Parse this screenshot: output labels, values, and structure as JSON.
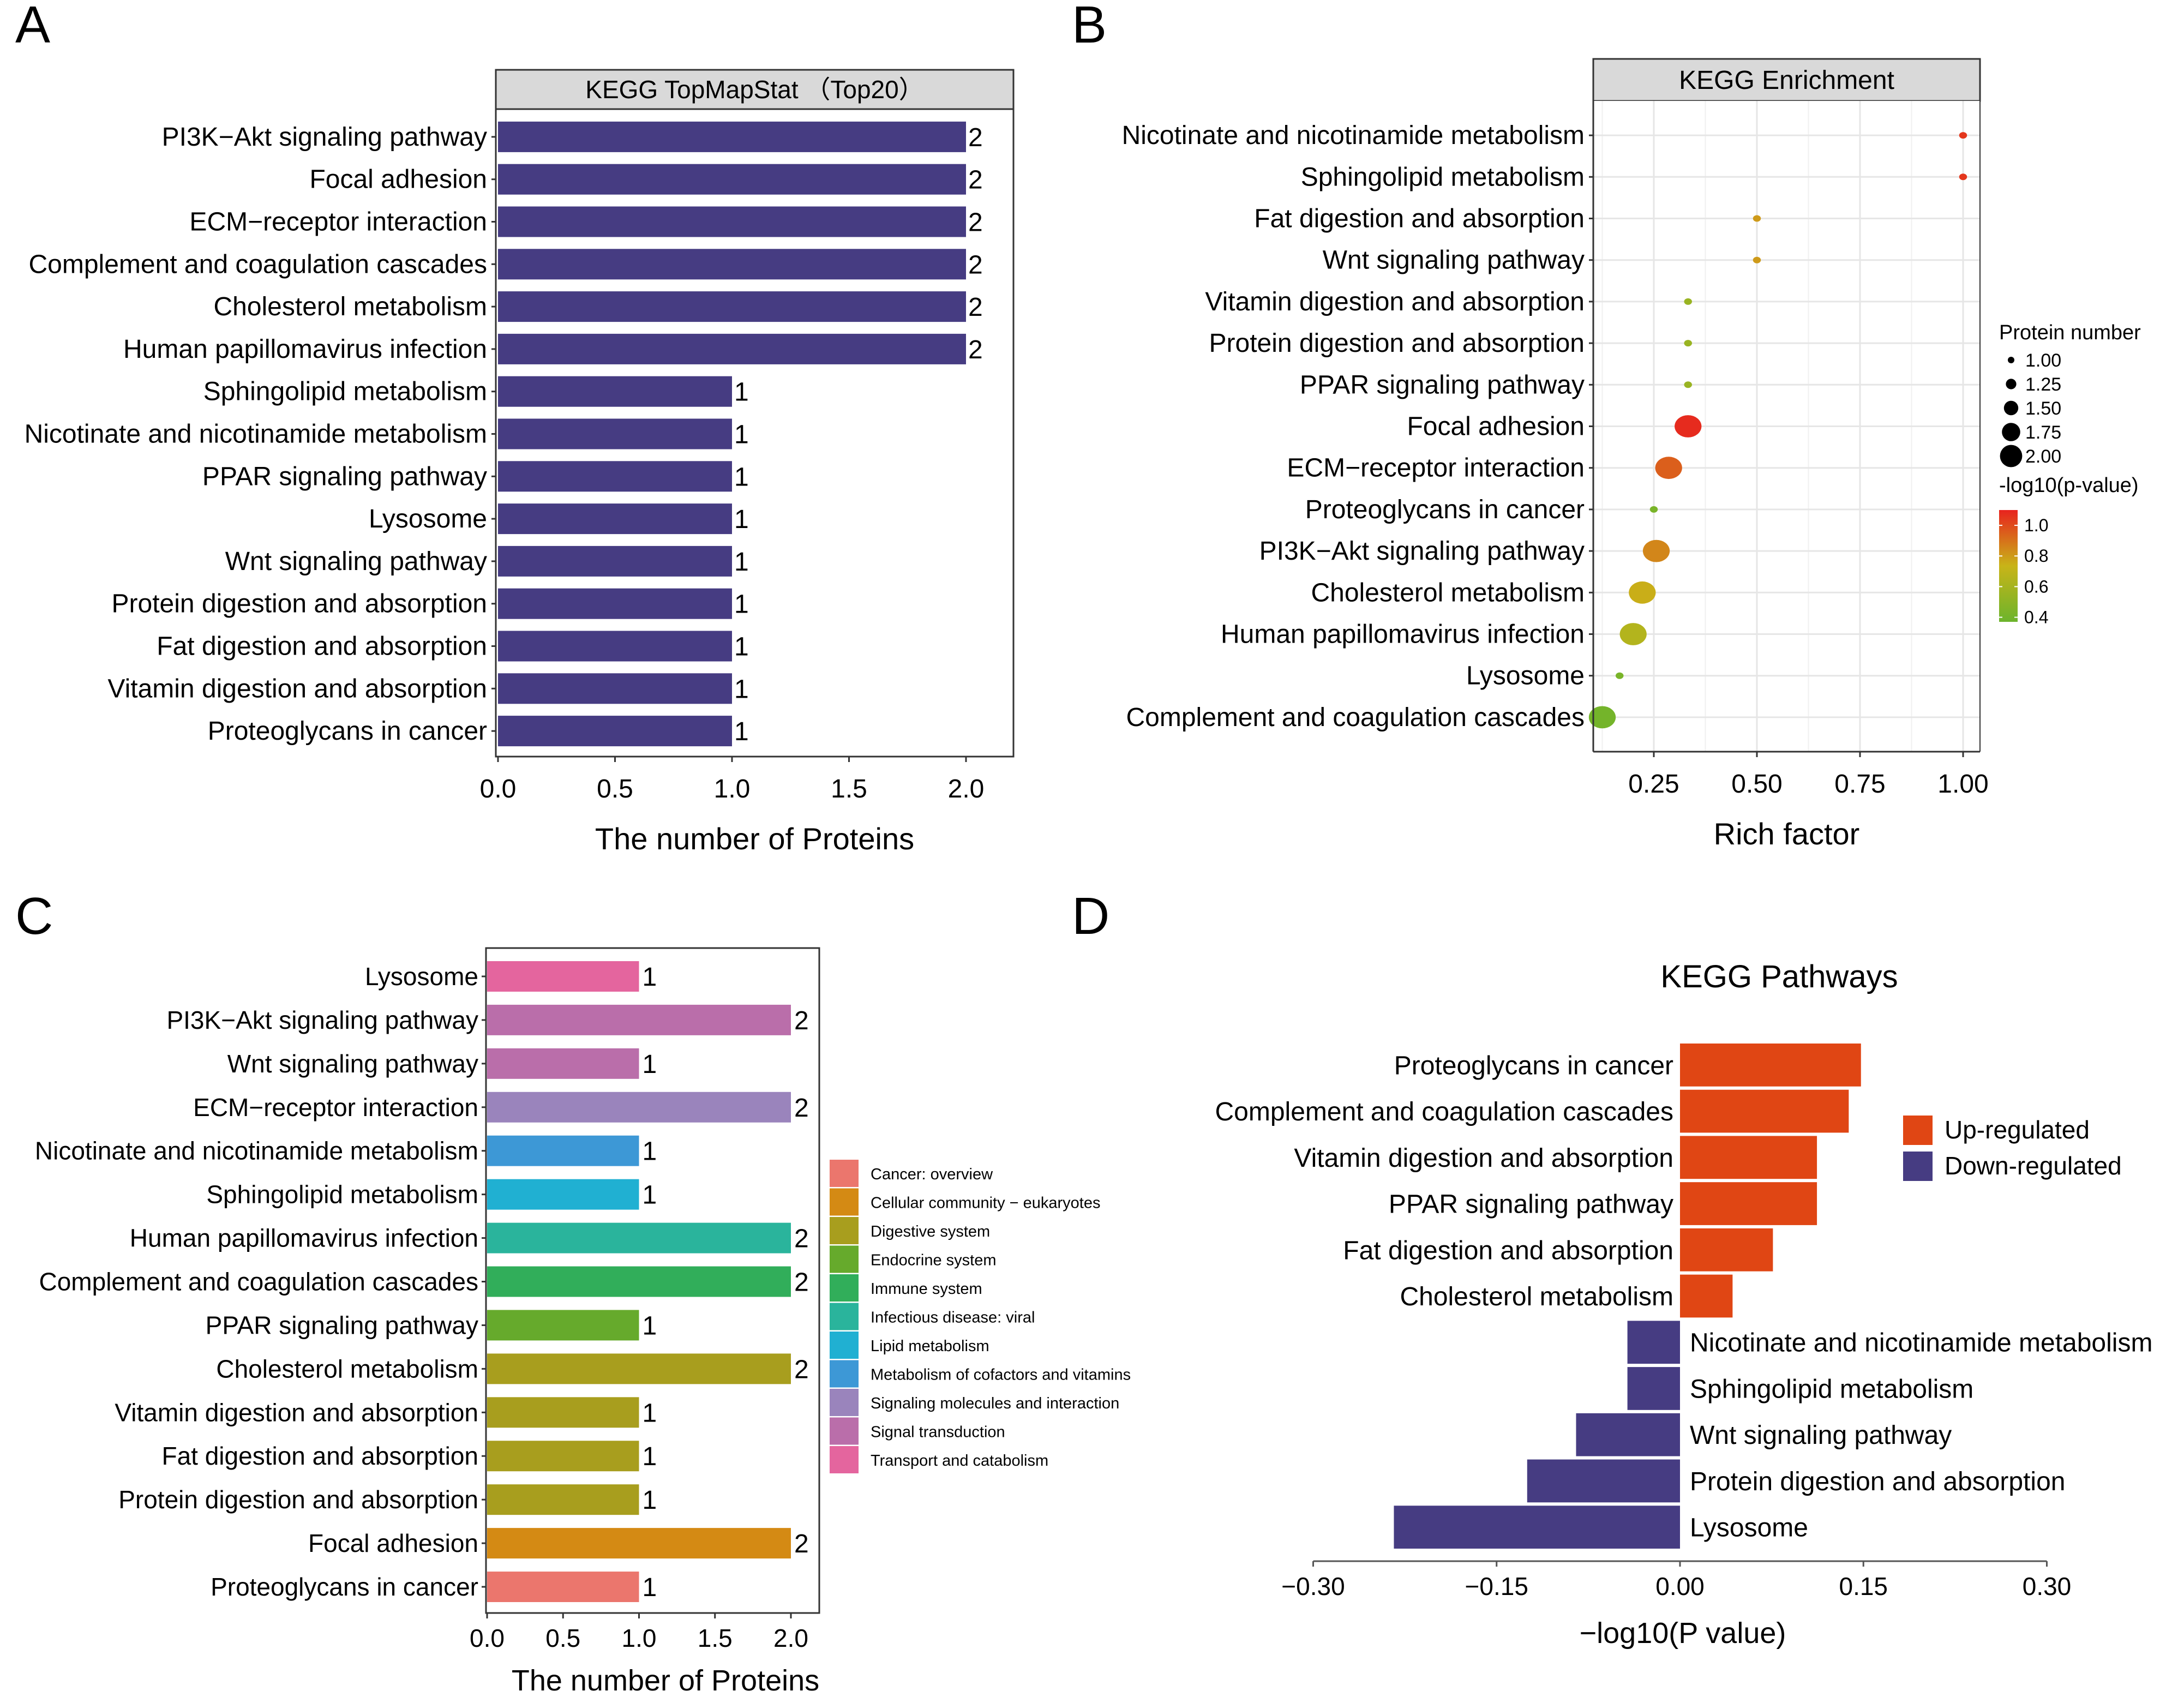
{
  "panels": {
    "A": {
      "letter": "A"
    },
    "B": {
      "letter": "B"
    },
    "C": {
      "letter": "C"
    },
    "D": {
      "letter": "D"
    }
  },
  "chart_data": [
    {
      "id": "A",
      "type": "bar",
      "orientation": "horizontal",
      "title": "KEGG TopMapStat （Top20）",
      "xlabel": "The number of Proteins",
      "ylabel": "",
      "xlim": [
        0,
        2.2
      ],
      "xticks": [
        "0.0",
        "0.5",
        "1.0",
        "1.5",
        "2.0"
      ],
      "bar_color": "#463C82",
      "categories": [
        "PI3K−Akt signaling pathway",
        "Focal adhesion",
        "ECM−receptor interaction",
        "Complement and coagulation cascades",
        "Cholesterol metabolism",
        "Human papillomavirus infection",
        "Sphingolipid metabolism",
        "Nicotinate and nicotinamide metabolism",
        "PPAR signaling pathway",
        "Lysosome",
        "Wnt signaling pathway",
        "Protein digestion and absorption",
        "Fat digestion and absorption",
        "Vitamin digestion and absorption",
        "Proteoglycans in cancer"
      ],
      "values": [
        2,
        2,
        2,
        2,
        2,
        2,
        1,
        1,
        1,
        1,
        1,
        1,
        1,
        1,
        1
      ],
      "data_labels": [
        "2",
        "2",
        "2",
        "2",
        "2",
        "2",
        "1",
        "1",
        "1",
        "1",
        "1",
        "1",
        "1",
        "1",
        "1"
      ]
    },
    {
      "id": "B",
      "type": "scatter",
      "title": "KEGG Enrichment",
      "xlabel": "Rich factor",
      "ylabel": "",
      "xlim": [
        0.09,
        1.045
      ],
      "xticks": [
        "0.25",
        "0.50",
        "0.75",
        "1.00"
      ],
      "grid": true,
      "categories": [
        "Nicotinate and nicotinamide metabolism",
        "Sphingolipid metabolism",
        "Fat digestion and absorption",
        "Wnt signaling pathway",
        "Vitamin digestion and absorption",
        "Protein digestion and absorption",
        "PPAR signaling pathway",
        "Focal adhesion",
        "ECM−receptor interaction",
        "Proteoglycans in cancer",
        "PI3K−Akt signaling pathway",
        "Cholesterol metabolism",
        "Human papillomavirus infection",
        "Lysosome",
        "Complement and coagulation cascades"
      ],
      "rich_factor": [
        1.0,
        1.0,
        0.5,
        0.5,
        0.333,
        0.333,
        0.333,
        0.333,
        0.286,
        0.25,
        0.256,
        0.222,
        0.2,
        0.167,
        0.125
      ],
      "protein_number": [
        1,
        1,
        1,
        1,
        1,
        1,
        1,
        2,
        2,
        1,
        2,
        2,
        2,
        1,
        2
      ],
      "neg_log10_p": [
        1.05,
        1.05,
        0.8,
        0.8,
        0.55,
        0.55,
        0.55,
        1.08,
        0.95,
        0.42,
        0.85,
        0.75,
        0.65,
        0.42,
        0.4
      ],
      "legend": {
        "size_title": "Protein number",
        "size_labels": [
          "1.00",
          "1.25",
          "1.50",
          "1.75",
          "2.00"
        ],
        "size_values": [
          1.0,
          1.25,
          1.5,
          1.75,
          2.0
        ],
        "color_title": "-log10(p-value)",
        "color_labels": [
          "1.0",
          "0.8",
          "0.6",
          "0.4"
        ],
        "color_values": [
          1.0,
          0.8,
          0.6,
          0.4
        ],
        "color_range": [
          0.37,
          1.1
        ],
        "color_low": "#6CB42C",
        "color_mid": "#C8B418",
        "color_high": "#E8231E",
        "placement": "right"
      }
    },
    {
      "id": "C",
      "type": "bar",
      "orientation": "horizontal",
      "title": "",
      "xlabel": "The number of Proteins",
      "ylabel": "",
      "xlim": [
        0,
        2.2
      ],
      "xticks": [
        "0.0",
        "0.5",
        "1.0",
        "1.5",
        "2.0"
      ],
      "categories": [
        "Lysosome",
        "PI3K−Akt signaling pathway",
        "Wnt signaling pathway",
        "ECM−receptor interaction",
        "Nicotinate and nicotinamide metabolism",
        "Sphingolipid metabolism",
        "Human papillomavirus infection",
        "Complement and coagulation cascades",
        "PPAR signaling pathway",
        "Cholesterol metabolism",
        "Vitamin digestion and absorption",
        "Fat digestion and absorption",
        "Protein digestion and absorption",
        "Focal adhesion",
        "Proteoglycans in cancer"
      ],
      "values": [
        1,
        2,
        1,
        2,
        1,
        1,
        2,
        2,
        1,
        2,
        1,
        1,
        1,
        2,
        1
      ],
      "data_labels": [
        "1",
        "2",
        "1",
        "2",
        "1",
        "1",
        "2",
        "2",
        "1",
        "2",
        "1",
        "1",
        "1",
        "2",
        "1"
      ],
      "groups": [
        "Transport and catabolism",
        "Signal transduction",
        "Signal transduction",
        "Signaling molecules and interaction",
        "Metabolism of cofactors and vitamins",
        "Lipid metabolism",
        "Infectious disease: viral",
        "Immune system",
        "Endocrine system",
        "Digestive system",
        "Digestive system",
        "Digestive system",
        "Digestive system",
        "Cellular community − eukaryotes",
        "Cancer: overview"
      ],
      "legend": {
        "placement": "right",
        "items": [
          {
            "label": "Cancer: overview",
            "color": "#EB766D"
          },
          {
            "label": "Cellular community − eukaryotes",
            "color": "#D48A14"
          },
          {
            "label": "Digestive system",
            "color": "#A89E1E"
          },
          {
            "label": "Endocrine system",
            "color": "#66AA2C"
          },
          {
            "label": "Immune system",
            "color": "#31AE5A"
          },
          {
            "label": "Infectious disease: viral",
            "color": "#2AB49C"
          },
          {
            "label": "Lipid metabolism",
            "color": "#20B0D2"
          },
          {
            "label": "Metabolism of cofactors and vitamins",
            "color": "#3D98D6"
          },
          {
            "label": "Signaling molecules and interaction",
            "color": "#9A84BC"
          },
          {
            "label": "Signal transduction",
            "color": "#BA6EAA"
          },
          {
            "label": "Transport and catabolism",
            "color": "#E4659E"
          }
        ]
      }
    },
    {
      "id": "D",
      "type": "bar",
      "orientation": "horizontal-diverging",
      "title": "KEGG Pathways",
      "xlabel": "−log10(P value)",
      "ylabel": "",
      "xlim": [
        -0.3,
        0.3
      ],
      "xticks": [
        "−0.30",
        "−0.15",
        "0.00",
        "0.15",
        "0.30"
      ],
      "xtick_values": [
        -0.3,
        -0.15,
        0,
        0.15,
        0.3
      ],
      "categories": [
        "Proteoglycans in cancer",
        "Complement and coagulation cascades",
        "Vitamin digestion and absorption",
        "PPAR signaling pathway",
        "Fat digestion and absorption",
        "Cholesterol metabolism",
        "Nicotinate and nicotinamide metabolism",
        "Sphingolipid metabolism",
        "Wnt signaling pathway",
        "Protein digestion and absorption",
        "Lysosome"
      ],
      "values": [
        0.148,
        0.138,
        0.112,
        0.112,
        0.076,
        0.043,
        -0.043,
        -0.043,
        -0.085,
        -0.125,
        -0.234
      ],
      "series": [
        {
          "name": "Up-regulated",
          "color": "#E04614"
        },
        {
          "name": "Down-regulated",
          "color": "#463C82"
        }
      ],
      "legend": {
        "placement": "right",
        "items": [
          "Up-regulated",
          "Down-regulated"
        ]
      }
    }
  ]
}
